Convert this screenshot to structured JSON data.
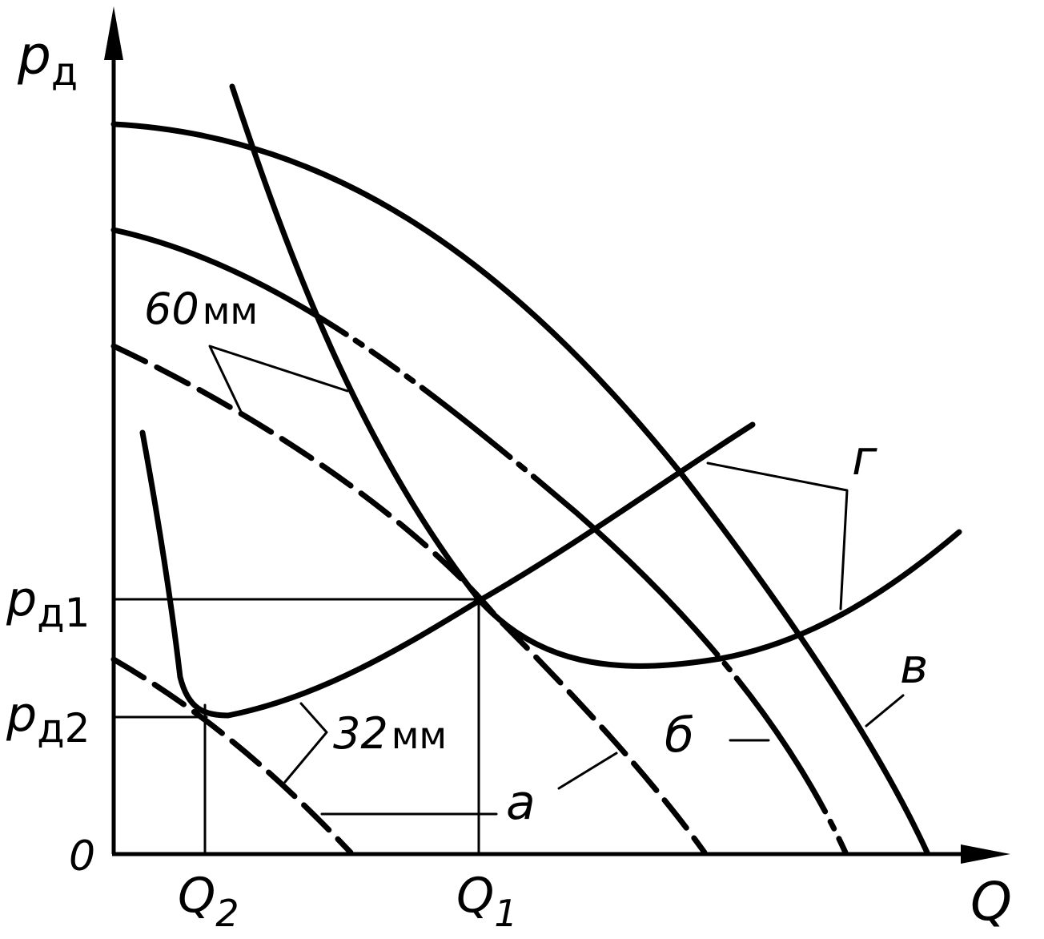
{
  "axes": {
    "y_label_main": "p",
    "y_label_sub": "д",
    "x_label": "Q",
    "origin": "0"
  },
  "y_ticks": [
    {
      "main": "p",
      "sub": "д1"
    },
    {
      "main": "p",
      "sub": "д2"
    }
  ],
  "x_ticks": [
    {
      "main": "Q",
      "sub": "2"
    },
    {
      "main": "Q",
      "sub": "1"
    }
  ],
  "diameter_labels": {
    "large_value": "60",
    "large_unit": "мм",
    "small_value": "32",
    "small_unit": "мм"
  },
  "curve_labels": {
    "a": "а",
    "b": "б",
    "v": "в",
    "g": "г"
  }
}
